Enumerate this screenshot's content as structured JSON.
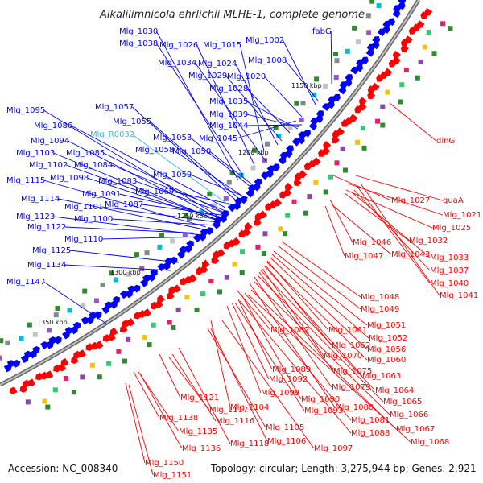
{
  "title": "Alkalilimnicola ehrlichii MLHE-1, complete genome",
  "accession": "Accession: NC_008340",
  "summary": "Topology: circular; Length: 3,275,944 bp; Genes: 2,921",
  "ticks": [
    "1150 kbp",
    "1200 kbp",
    "1250 kbp",
    "1300 kbp",
    "1350 kbp"
  ],
  "colors": {
    "forward": "#0000ff",
    "reverse": "#ff0000",
    "rna": "#33bbee",
    "backbone": "#888888"
  },
  "forward_labels": [
    "Mlg_1030",
    "Mlg_1038",
    "Mlg_1026",
    "Mlg_1015",
    "Mlg_1002",
    "fabG",
    "Mlg_1034",
    "Mlg_1024",
    "Mlg_1008",
    "Mlg_1029",
    "Mlg_1020",
    "Mlg_1028",
    "Mlg_1035",
    "Mlg_1039",
    "Mlg_1044",
    "Mlg_1045",
    "Mlg_1057",
    "Mlg_1055",
    "Mlg_1095",
    "Mlg_1086",
    "Mlg_1053",
    "Mlg_1058",
    "Mlg_1050",
    "Mlg_1094",
    "Mlg_1085",
    "Mlg_1103",
    "Mlg_1102",
    "Mlg_1084",
    "Mlg_1059",
    "Mlg_1115",
    "Mlg_1098",
    "Mlg_1083",
    "Mlg_1091",
    "Mlg_1069",
    "Mlg_1114",
    "Mlg_1101",
    "Mlg_1087",
    "Mlg_1123",
    "Mlg_1100",
    "Mlg_1122",
    "Mlg_1110",
    "Mlg_1125",
    "Mlg_1134",
    "Mlg_1147"
  ],
  "rna_labels": [
    "Mlg_R0032"
  ],
  "reverse_labels": [
    "dinG",
    "Mlg_1027",
    "guaA",
    "Mlg_1021",
    "Mlg_1025",
    "Mlg_1032",
    "Mlg_1046",
    "Mlg_1047",
    "Mlg_1043",
    "Mlg_1033",
    "Mlg_1037",
    "Mlg_1040",
    "Mlg_1041",
    "Mlg_1048",
    "Mlg_1049",
    "Mlg_1051",
    "Mlg_1052",
    "Mlg_1061",
    "Mlg_1056",
    "Mlg_1082",
    "Mlg_1062",
    "Mlg_1060",
    "Mlg_1070",
    "Mlg_1063",
    "Mlg_1075",
    "Mlg_1089",
    "Mlg_1064",
    "Mlg_1092",
    "Mlg_1079",
    "Mlg_1065",
    "Mlg_1099",
    "Mlg_1090",
    "Mlg_1080",
    "Mlg_1066",
    "Mlg_1093",
    "Mlg_1081",
    "Mlg_1104",
    "Mlg_1067",
    "Mlg_1088",
    "Mlg_1121",
    "Mlg_1117",
    "Mlg_1068",
    "Mlg_1105",
    "Mlg_1116",
    "Mlg_1097",
    "Mlg_1106",
    "Mlg_1138",
    "Mlg_1118",
    "Mlg_1135",
    "Mlg_1136",
    "Mlg_1150",
    "Mlg_1151"
  ]
}
